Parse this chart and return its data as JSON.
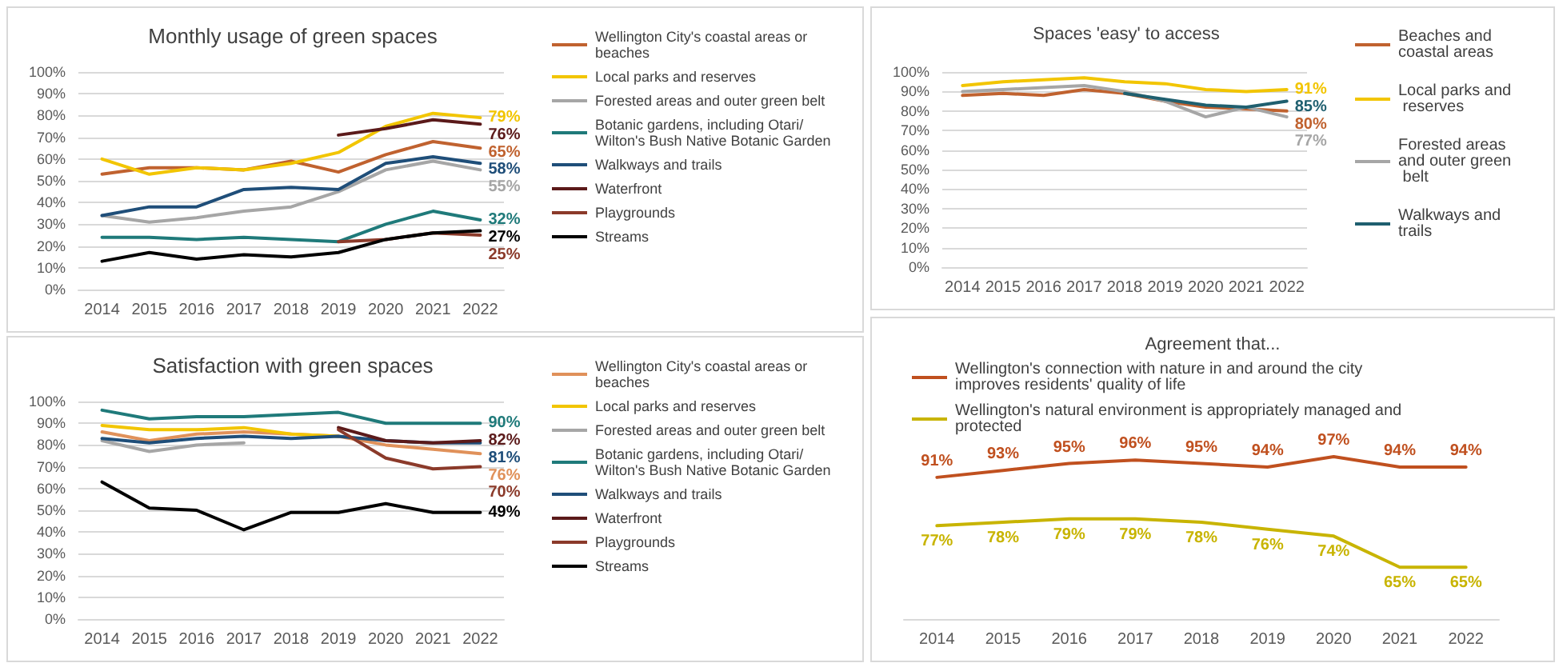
{
  "chart_data": [
    {
      "type": "line",
      "title": "Monthly usage of green spaces",
      "categories": [
        "2014",
        "2015",
        "2016",
        "2017",
        "2018",
        "2019",
        "2020",
        "2021",
        "2022"
      ],
      "ylim": [
        0,
        100
      ],
      "yticks": [
        {
          "value": 0,
          "label": "0%"
        },
        {
          "value": 10,
          "label": "10%"
        },
        {
          "value": 20,
          "label": "20%"
        },
        {
          "value": 30,
          "label": "30%"
        },
        {
          "value": 40,
          "label": "40%"
        },
        {
          "value": 50,
          "label": "50%"
        },
        {
          "value": 60,
          "label": "60%"
        },
        {
          "value": 70,
          "label": "70%"
        },
        {
          "value": 80,
          "label": "80%"
        },
        {
          "value": 90,
          "label": "90%"
        },
        {
          "value": 100,
          "label": "100%"
        }
      ],
      "grid": "y",
      "legend": "right",
      "marker": "none",
      "line_style": "solid",
      "series": [
        {
          "name": "Wellington City's coastal areas or beaches",
          "color": "#c0622f",
          "values": [
            53,
            56,
            56,
            55,
            59,
            54,
            62,
            68,
            65
          ],
          "value_labels": [
            null,
            null,
            null,
            null,
            null,
            null,
            null,
            null,
            "65%"
          ]
        },
        {
          "name": "Local parks and reserves",
          "color": "#f2c500",
          "values": [
            60,
            53,
            56,
            55,
            58,
            63,
            75,
            81,
            79
          ],
          "value_labels": [
            null,
            null,
            null,
            null,
            null,
            null,
            null,
            null,
            "79%"
          ]
        },
        {
          "name": "Forested areas and outer green belt",
          "color": "#a6a6a6",
          "values": [
            34,
            31,
            33,
            36,
            38,
            45,
            55,
            59,
            55
          ],
          "value_labels": [
            null,
            null,
            null,
            null,
            null,
            null,
            null,
            null,
            "55%"
          ]
        },
        {
          "name": "Botanic gardens, including Otari/Wilton's Bush Native Botanic Garden",
          "color": "#1f7a7a",
          "values": [
            24,
            24,
            23,
            24,
            23,
            22,
            30,
            36,
            32
          ],
          "value_labels": [
            null,
            null,
            null,
            null,
            null,
            null,
            null,
            null,
            "32%"
          ]
        },
        {
          "name": "Walkways and trails",
          "color": "#1f4e79",
          "values": [
            34,
            38,
            38,
            46,
            47,
            46,
            58,
            61,
            58
          ],
          "value_labels": [
            null,
            null,
            null,
            null,
            null,
            null,
            null,
            null,
            "58%"
          ]
        },
        {
          "name": "Waterfront",
          "color": "#5b1a1a",
          "values": [
            null,
            null,
            null,
            null,
            null,
            71,
            74,
            78,
            76
          ],
          "value_labels": [
            null,
            null,
            null,
            null,
            null,
            null,
            null,
            null,
            "76%"
          ]
        },
        {
          "name": "Playgrounds",
          "color": "#8b3a2a",
          "values": [
            null,
            null,
            null,
            null,
            null,
            22,
            23,
            26,
            25
          ],
          "value_labels": [
            null,
            null,
            null,
            null,
            null,
            null,
            null,
            null,
            "25%"
          ]
        },
        {
          "name": "Streams",
          "color": "#000000",
          "values": [
            13,
            17,
            14,
            16,
            15,
            17,
            23,
            26,
            27
          ],
          "value_labels": [
            null,
            null,
            null,
            null,
            null,
            null,
            null,
            null,
            "27%"
          ]
        }
      ]
    },
    {
      "type": "line",
      "title": "Satisfaction with green spaces",
      "categories": [
        "2014",
        "2015",
        "2016",
        "2017",
        "2018",
        "2019",
        "2020",
        "2021",
        "2022"
      ],
      "ylim": [
        0,
        100
      ],
      "yticks": [
        {
          "value": 0,
          "label": "0%"
        },
        {
          "value": 10,
          "label": "10%"
        },
        {
          "value": 20,
          "label": "20%"
        },
        {
          "value": 30,
          "label": "30%"
        },
        {
          "value": 40,
          "label": "40%"
        },
        {
          "value": 50,
          "label": "50%"
        },
        {
          "value": 60,
          "label": "60%"
        },
        {
          "value": 70,
          "label": "70%"
        },
        {
          "value": 80,
          "label": "80%"
        },
        {
          "value": 90,
          "label": "90%"
        },
        {
          "value": 100,
          "label": "100%"
        }
      ],
      "grid": "y",
      "legend": "right",
      "marker": "none",
      "line_style": "solid",
      "series": [
        {
          "name": "Wellington City's coastal areas or beaches",
          "color": "#e0915a",
          "values": [
            86,
            82,
            85,
            86,
            85,
            84,
            80,
            78,
            76
          ],
          "value_labels": [
            null,
            null,
            null,
            null,
            null,
            null,
            null,
            null,
            "76%"
          ]
        },
        {
          "name": "Local parks and reserves",
          "color": "#f2c500",
          "values": [
            89,
            87,
            87,
            88,
            85,
            84,
            null,
            null,
            null
          ]
        },
        {
          "name": "Forested areas and outer green belt",
          "color": "#a6a6a6",
          "values": [
            82,
            77,
            80,
            81,
            null,
            null,
            null,
            null,
            null
          ]
        },
        {
          "name": "Botanic gardens, including Otari/Wilton's Bush Native Botanic Garden",
          "color": "#1f7a7a",
          "values": [
            96,
            92,
            93,
            93,
            94,
            95,
            90,
            90,
            90
          ],
          "value_labels": [
            null,
            null,
            null,
            null,
            null,
            null,
            null,
            null,
            "90%"
          ]
        },
        {
          "name": "Walkways and trails",
          "color": "#1f4e79",
          "values": [
            83,
            81,
            83,
            84,
            83,
            84,
            82,
            81,
            81
          ],
          "value_labels": [
            null,
            null,
            null,
            null,
            null,
            null,
            null,
            null,
            "81%"
          ]
        },
        {
          "name": "Waterfront",
          "color": "#5b1a1a",
          "values": [
            null,
            null,
            null,
            null,
            null,
            88,
            82,
            81,
            82
          ],
          "value_labels": [
            null,
            null,
            null,
            null,
            null,
            null,
            null,
            null,
            "82%"
          ]
        },
        {
          "name": "Playgrounds",
          "color": "#8b3a2a",
          "values": [
            null,
            null,
            null,
            null,
            null,
            87,
            74,
            69,
            70
          ],
          "value_labels": [
            null,
            null,
            null,
            null,
            null,
            null,
            null,
            null,
            "70%"
          ]
        },
        {
          "name": "Streams",
          "color": "#000000",
          "values": [
            63,
            51,
            50,
            41,
            49,
            49,
            53,
            49,
            49
          ],
          "value_labels": [
            null,
            null,
            null,
            null,
            null,
            null,
            null,
            null,
            "49%"
          ]
        }
      ]
    },
    {
      "type": "line",
      "title": "Spaces 'easy' to access",
      "categories": [
        "2014",
        "2015",
        "2016",
        "2017",
        "2018",
        "2019",
        "2020",
        "2021",
        "2022"
      ],
      "ylim": [
        0,
        100
      ],
      "yticks": [
        {
          "value": 0,
          "label": "0%"
        },
        {
          "value": 10,
          "label": "10%"
        },
        {
          "value": 20,
          "label": "20%"
        },
        {
          "value": 30,
          "label": "30%"
        },
        {
          "value": 40,
          "label": "40%"
        },
        {
          "value": 50,
          "label": "50%"
        },
        {
          "value": 60,
          "label": "60%"
        },
        {
          "value": 70,
          "label": "70%"
        },
        {
          "value": 80,
          "label": "80%"
        },
        {
          "value": 90,
          "label": "90%"
        },
        {
          "value": 100,
          "label": "100%"
        }
      ],
      "grid": "y",
      "legend": "right",
      "marker": "none",
      "line_style": "solid",
      "series": [
        {
          "name": "Beaches and coastal areas",
          "color": "#c0622f",
          "values": [
            88,
            89,
            88,
            91,
            89,
            85,
            82,
            81,
            80
          ],
          "value_labels": [
            null,
            null,
            null,
            null,
            null,
            null,
            null,
            null,
            "80%"
          ]
        },
        {
          "name": "Local parks and reserves",
          "color": "#f2c500",
          "values": [
            93,
            95,
            96,
            97,
            95,
            94,
            91,
            90,
            91
          ],
          "value_labels": [
            null,
            null,
            null,
            null,
            null,
            null,
            null,
            null,
            "91%"
          ]
        },
        {
          "name": "Forested areas and outer green belt",
          "color": "#a6a6a6",
          "values": [
            90,
            91,
            92,
            93,
            90,
            85,
            77,
            82,
            77
          ],
          "value_labels": [
            null,
            null,
            null,
            null,
            null,
            null,
            null,
            null,
            "77%"
          ]
        },
        {
          "name": "Walkways and trails",
          "color": "#1f5f6f",
          "values": [
            null,
            null,
            null,
            null,
            89,
            86,
            83,
            82,
            85
          ],
          "value_labels": [
            null,
            null,
            null,
            null,
            null,
            null,
            null,
            null,
            "85%"
          ]
        }
      ]
    },
    {
      "type": "line",
      "title": "Agreement that...",
      "categories": [
        "2014",
        "2015",
        "2016",
        "2017",
        "2018",
        "2019",
        "2020",
        "2021",
        "2022"
      ],
      "tick_labels": "x",
      "legend": "top",
      "marker": "none",
      "line_style": "solid",
      "series": [
        {
          "name": "Wellington's connection with nature in and around the city improves residents' quality of life",
          "color": "#c0501f",
          "values": [
            91,
            93,
            95,
            96,
            95,
            94,
            97,
            94,
            94
          ],
          "value_labels": [
            "91%",
            "93%",
            "95%",
            "96%",
            "95%",
            "94%",
            "97%",
            "94%",
            "94%"
          ]
        },
        {
          "name": "Wellington's natural environment is appropriately managed and protected",
          "color": "#c8b400",
          "values": [
            77,
            78,
            79,
            79,
            78,
            76,
            74,
            65,
            65
          ],
          "value_labels": [
            "77%",
            "78%",
            "79%",
            "79%",
            "78%",
            "76%",
            "74%",
            "65%",
            "65%"
          ]
        }
      ]
    }
  ]
}
